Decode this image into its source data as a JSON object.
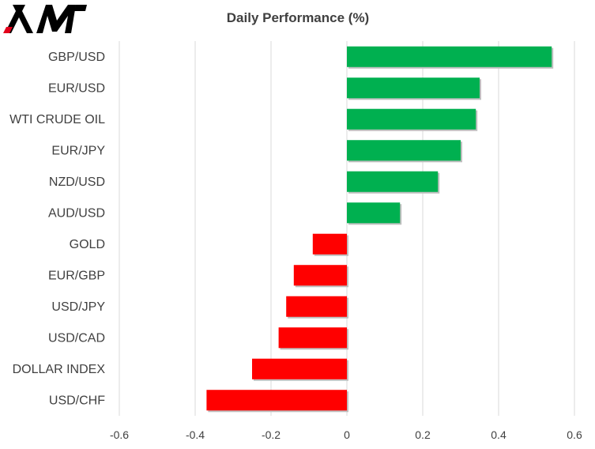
{
  "brand": {
    "logo_text": "XM",
    "logo_color": "#000000",
    "logo_accent": "#e3001b"
  },
  "chart_data": {
    "type": "bar",
    "orientation": "horizontal",
    "title": "Daily Performance  (%)",
    "categories": [
      "GBP/USD",
      "EUR/USD",
      "WTI CRUDE OIL",
      "EUR/JPY",
      "NZD/USD",
      "AUD/USD",
      "GOLD",
      "EUR/GBP",
      "USD/JPY",
      "USD/CAD",
      "DOLLAR INDEX",
      "USD/CHF"
    ],
    "values": [
      0.54,
      0.35,
      0.34,
      0.3,
      0.24,
      0.14,
      -0.09,
      -0.14,
      -0.16,
      -0.18,
      -0.25,
      -0.37
    ],
    "xlim": [
      -0.6,
      0.6
    ],
    "xticks": [
      -0.6,
      -0.4,
      -0.2,
      0,
      0.2,
      0.4,
      0.6
    ],
    "xtick_labels": [
      "-0.6",
      "-0.4",
      "-0.2",
      "0",
      "0.2",
      "0.4",
      "0.6"
    ],
    "grid": "vertical",
    "legend": "none",
    "colors": {
      "positive": "#00b050",
      "negative": "#ff0000",
      "grid": "#d9d9d9"
    }
  }
}
